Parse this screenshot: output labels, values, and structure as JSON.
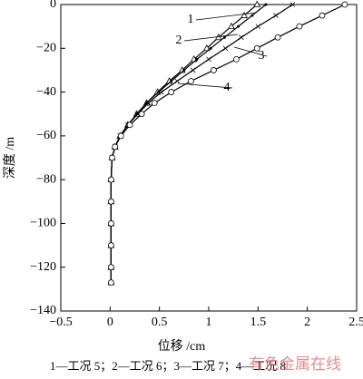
{
  "chart_data": {
    "type": "line",
    "xlabel": "位移 /cm",
    "ylabel": "深度 /m",
    "xlim": [
      -0.5,
      2.5
    ],
    "ylim": [
      -140,
      0
    ],
    "xticks": [
      {
        "value": -0.5,
        "label": "−0.5"
      },
      0,
      0.5,
      1,
      1.5,
      2,
      2.5
    ],
    "yticks": [
      {
        "value": -140,
        "label": "−140"
      },
      {
        "value": -120,
        "label": "−120"
      },
      {
        "value": -100,
        "label": "−100"
      },
      {
        "value": -80,
        "label": "−80"
      },
      {
        "value": -60,
        "label": "−60"
      },
      {
        "value": -40,
        "label": "−40"
      },
      {
        "value": -20,
        "label": "−20"
      },
      0
    ],
    "y": [
      0,
      -5,
      -10,
      -15,
      -20,
      -25,
      -30,
      -35,
      -40,
      -45,
      -50,
      -55,
      -60,
      -65,
      -70,
      -80,
      -90,
      -100,
      -110,
      -120,
      -127
    ],
    "series": [
      {
        "name": "1",
        "color": "#000000",
        "marker": "triangle",
        "x": [
          1.49,
          1.36,
          1.23,
          1.1,
          0.98,
          0.85,
          0.73,
          0.6,
          0.48,
          0.37,
          0.27,
          0.18,
          0.1,
          0.05,
          0.02,
          0.01,
          0.01,
          0.01,
          0.01,
          0.01,
          0.01
        ]
      },
      {
        "name": "2",
        "color": "#000000",
        "marker": "dot",
        "x": [
          1.58,
          1.44,
          1.3,
          1.16,
          1.02,
          0.88,
          0.75,
          0.62,
          0.49,
          0.37,
          0.27,
          0.18,
          0.1,
          0.05,
          0.02,
          0.01,
          0.01,
          0.01,
          0.01,
          0.01,
          0.01
        ]
      },
      {
        "name": "3",
        "color": "#000000",
        "marker": "cross",
        "x": [
          1.85,
          1.68,
          1.5,
          1.33,
          1.17,
          1.0,
          0.84,
          0.68,
          0.52,
          0.39,
          0.28,
          0.18,
          0.1,
          0.05,
          0.02,
          0.01,
          0.01,
          0.01,
          0.01,
          0.01,
          0.01
        ]
      },
      {
        "name": "4",
        "color": "#000000",
        "marker": "circle",
        "x": [
          2.38,
          2.15,
          1.92,
          1.7,
          1.49,
          1.28,
          1.05,
          0.82,
          0.62,
          0.45,
          0.32,
          0.2,
          0.11,
          0.05,
          0.02,
          0.01,
          0.01,
          0.01,
          0.01,
          0.01,
          0.01
        ]
      }
    ],
    "caption": "1—工况 5；2—工况 6；3—工况 7；4—工况 8",
    "watermark": "有色金属在线"
  }
}
